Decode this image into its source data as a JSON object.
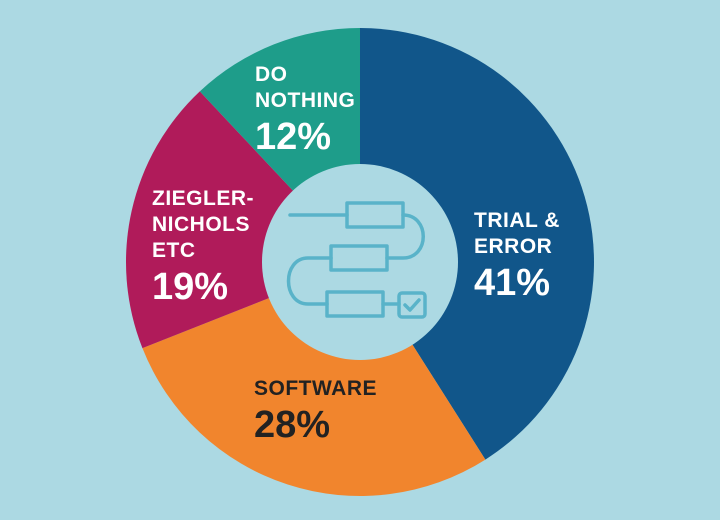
{
  "chart_data": {
    "type": "pie",
    "donut": true,
    "center_icon": "flowchart-checkmark-icon",
    "slices": [
      {
        "label": "TRIAL & ERROR",
        "value": 41,
        "pct_label": "41%",
        "color": "#11568a"
      },
      {
        "label": "SOFTWARE",
        "value": 28,
        "pct_label": "28%",
        "color": "#f1852d"
      },
      {
        "label": "ZIEGLER-NICHOLS ETC",
        "value": 19,
        "pct_label": "19%",
        "color": "#b01b5a"
      },
      {
        "label": "DO NOTHING",
        "value": 12,
        "pct_label": "12%",
        "color": "#1e9d8a"
      }
    ]
  },
  "labels": {
    "trial": {
      "line1": "TRIAL &",
      "line2": "ERROR",
      "pct": "41%"
    },
    "software": {
      "line1": "SOFTWARE",
      "pct": "28%"
    },
    "ziegler": {
      "line1": "ZIEGLER-",
      "line2": "NICHOLS",
      "line3": "ETC",
      "pct": "19%"
    },
    "nothing": {
      "line1": "DO",
      "line2": "NOTHING",
      "pct": "12%"
    }
  },
  "colors": {
    "background": "#acd9e3",
    "center": "#acd9e3",
    "icon_stroke": "#59b3c9"
  }
}
